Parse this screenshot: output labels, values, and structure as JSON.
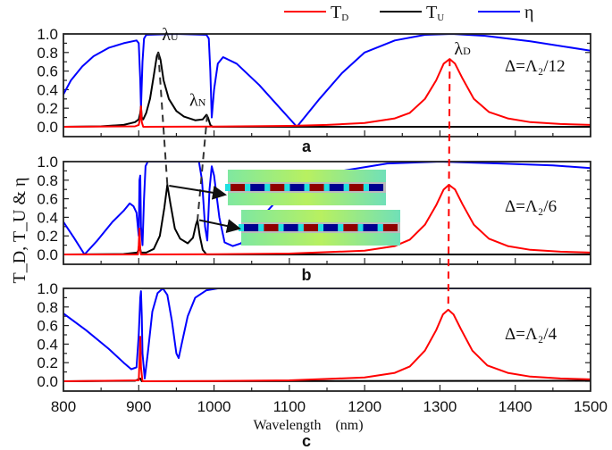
{
  "chart_data": {
    "type": "line",
    "xlim": [
      800,
      1500
    ],
    "ylim": [
      0,
      1.0
    ],
    "xticks": [
      "800",
      "900",
      "1000",
      "1100",
      "1200",
      "1300",
      "1400",
      "1500"
    ],
    "yticks": [
      "0.0",
      "0.2",
      "0.4",
      "0.6",
      "0.8",
      "1.0"
    ],
    "xlabel": "Wavelength    (nm)",
    "ylabel": "T_D, T_U & η",
    "legend": {
      "placement": "top",
      "entries": [
        {
          "key": "TD",
          "label": "T",
          "sub": "D",
          "color": "#ff0000"
        },
        {
          "key": "TU",
          "label": "T",
          "sub": "U",
          "color": "#000000"
        },
        {
          "key": "eta",
          "label": "η",
          "sub": "",
          "color": "#0000ff"
        }
      ]
    },
    "panels": [
      {
        "letter": "a",
        "condition": "Δ=Λ₂/12",
        "annotations": [
          {
            "text": "λ",
            "sub": "U",
            "x": 926,
            "y": 0.8
          },
          {
            "text": "λ",
            "sub": "N",
            "x": 991,
            "y": 0.13
          },
          {
            "text": "λ",
            "sub": "D",
            "x": 1313,
            "y": 0.73
          }
        ],
        "series": {
          "TD": [
            [
              800,
              0
            ],
            [
              895,
              0.005
            ],
            [
              900,
              0.02
            ],
            [
              902,
              0.1
            ],
            [
              903,
              0.22
            ],
            [
              904,
              0.05
            ],
            [
              906,
              0
            ],
            [
              1000,
              0.003
            ],
            [
              1100,
              0.01
            ],
            [
              1150,
              0.02
            ],
            [
              1200,
              0.04
            ],
            [
              1240,
              0.09
            ],
            [
              1260,
              0.15
            ],
            [
              1280,
              0.3
            ],
            [
              1295,
              0.5
            ],
            [
              1305,
              0.68
            ],
            [
              1313,
              0.73
            ],
            [
              1320,
              0.68
            ],
            [
              1330,
              0.52
            ],
            [
              1345,
              0.3
            ],
            [
              1365,
              0.16
            ],
            [
              1390,
              0.09
            ],
            [
              1420,
              0.05
            ],
            [
              1460,
              0.03
            ],
            [
              1500,
              0.02
            ]
          ],
          "TU": [
            [
              800,
              0
            ],
            [
              850,
              0.005
            ],
            [
              880,
              0.02
            ],
            [
              895,
              0.05
            ],
            [
              900,
              0.08
            ],
            [
              902,
              0.15
            ],
            [
              903,
              0.22
            ],
            [
              904,
              0.1
            ],
            [
              906,
              0.08
            ],
            [
              910,
              0.15
            ],
            [
              915,
              0.3
            ],
            [
              920,
              0.55
            ],
            [
              924,
              0.76
            ],
            [
              926,
              0.8
            ],
            [
              929,
              0.72
            ],
            [
              933,
              0.5
            ],
            [
              940,
              0.3
            ],
            [
              950,
              0.17
            ],
            [
              960,
              0.11
            ],
            [
              975,
              0.07
            ],
            [
              985,
              0.08
            ],
            [
              990,
              0.13
            ],
            [
              992,
              0.1
            ],
            [
              995,
              0.02
            ],
            [
              998,
              0
            ],
            [
              1500,
              0
            ]
          ],
          "eta": [
            [
              800,
              0.35
            ],
            [
              810,
              0.5
            ],
            [
              825,
              0.65
            ],
            [
              840,
              0.76
            ],
            [
              860,
              0.85
            ],
            [
              880,
              0.9
            ],
            [
              897,
              0.93
            ],
            [
              900,
              0.9
            ],
            [
              902,
              0.5
            ],
            [
              903,
              0.2
            ],
            [
              905,
              0.7
            ],
            [
              907,
              0.95
            ],
            [
              910,
              0.99
            ],
            [
              950,
              1.0
            ],
            [
              990,
              0.99
            ],
            [
              993,
              0.95
            ],
            [
              995,
              0.6
            ],
            [
              997,
              0.1
            ],
            [
              1000,
              0.4
            ],
            [
              1005,
              0.68
            ],
            [
              1012,
              0.75
            ],
            [
              1030,
              0.68
            ],
            [
              1060,
              0.45
            ],
            [
              1090,
              0.18
            ],
            [
              1110,
              0
            ],
            [
              1140,
              0.3
            ],
            [
              1170,
              0.58
            ],
            [
              1200,
              0.8
            ],
            [
              1240,
              0.93
            ],
            [
              1280,
              0.99
            ],
            [
              1316,
              1.0
            ],
            [
              1360,
              0.98
            ],
            [
              1420,
              0.92
            ],
            [
              1500,
              0.82
            ]
          ]
        }
      },
      {
        "letter": "b",
        "condition": "Δ=Λ₂/6",
        "annotations": [],
        "series": {
          "TD": [
            [
              800,
              0
            ],
            [
              899,
              0
            ],
            [
              900,
              0.1
            ],
            [
              901,
              0.28
            ],
            [
              902,
              0.05
            ],
            [
              903,
              0
            ],
            [
              1000,
              0.003
            ],
            [
              1100,
              0.01
            ],
            [
              1200,
              0.04
            ],
            [
              1240,
              0.09
            ],
            [
              1260,
              0.16
            ],
            [
              1280,
              0.32
            ],
            [
              1295,
              0.53
            ],
            [
              1305,
              0.7
            ],
            [
              1312,
              0.75
            ],
            [
              1320,
              0.7
            ],
            [
              1330,
              0.54
            ],
            [
              1345,
              0.32
            ],
            [
              1365,
              0.17
            ],
            [
              1390,
              0.09
            ],
            [
              1420,
              0.05
            ],
            [
              1460,
              0.03
            ],
            [
              1500,
              0.02
            ]
          ],
          "TU": [
            [
              800,
              0
            ],
            [
              880,
              0.005
            ],
            [
              898,
              0.02
            ],
            [
              900,
              0.05
            ],
            [
              901.5,
              0.08
            ],
            [
              903,
              0.02
            ],
            [
              910,
              0.02
            ],
            [
              920,
              0.06
            ],
            [
              928,
              0.2
            ],
            [
              934,
              0.5
            ],
            [
              938,
              0.75
            ],
            [
              942,
              0.55
            ],
            [
              948,
              0.28
            ],
            [
              955,
              0.17
            ],
            [
              965,
              0.12
            ],
            [
              972,
              0.18
            ],
            [
              976,
              0.32
            ],
            [
              978,
              0.37
            ],
            [
              981,
              0.2
            ],
            [
              985,
              0.05
            ],
            [
              990,
              0
            ],
            [
              1500,
              0
            ]
          ],
          "eta": [
            [
              800,
              0.35
            ],
            [
              814,
              0.18
            ],
            [
              828,
              0
            ],
            [
              845,
              0.15
            ],
            [
              865,
              0.35
            ],
            [
              880,
              0.47
            ],
            [
              888,
              0.55
            ],
            [
              893,
              0.52
            ],
            [
              897,
              0.45
            ],
            [
              900,
              0.2
            ],
            [
              901,
              0.8
            ],
            [
              902,
              0.85
            ],
            [
              903,
              0.3
            ],
            [
              905,
              0.1
            ],
            [
              907,
              0.6
            ],
            [
              909,
              0.95
            ],
            [
              912,
              1.0
            ],
            [
              980,
              1.0
            ],
            [
              984,
              0.8
            ],
            [
              988,
              0.3
            ],
            [
              991,
              0.15
            ],
            [
              994,
              0.7
            ],
            [
              997,
              0.95
            ],
            [
              1000,
              0.85
            ],
            [
              1007,
              0.4
            ],
            [
              1014,
              0.13
            ],
            [
              1025,
              0.09
            ],
            [
              1036,
              0.12
            ],
            [
              1050,
              0.28
            ],
            [
              1080,
              0.55
            ],
            [
              1120,
              0.75
            ],
            [
              1170,
              0.9
            ],
            [
              1230,
              0.98
            ],
            [
              1300,
              1.0
            ],
            [
              1380,
              0.98
            ],
            [
              1450,
              0.96
            ],
            [
              1500,
              0.93
            ]
          ]
        }
      },
      {
        "letter": "c",
        "condition": "Δ=Λ₂/4",
        "annotations": [],
        "series": {
          "TD": [
            [
              800,
              0
            ],
            [
              900,
              0.01
            ],
            [
              901,
              0.2
            ],
            [
              902,
              0.48
            ],
            [
              903,
              0.15
            ],
            [
              905,
              0
            ],
            [
              1000,
              0.003
            ],
            [
              1100,
              0.01
            ],
            [
              1200,
              0.04
            ],
            [
              1240,
              0.09
            ],
            [
              1260,
              0.16
            ],
            [
              1280,
              0.33
            ],
            [
              1295,
              0.55
            ],
            [
              1304,
              0.72
            ],
            [
              1311,
              0.77
            ],
            [
              1318,
              0.72
            ],
            [
              1328,
              0.56
            ],
            [
              1343,
              0.33
            ],
            [
              1363,
              0.17
            ],
            [
              1390,
              0.09
            ],
            [
              1420,
              0.05
            ],
            [
              1460,
              0.03
            ],
            [
              1500,
              0.02
            ]
          ],
          "TU": [
            [
              800,
              0
            ],
            [
              895,
              0.005
            ],
            [
              902,
              0.03
            ],
            [
              904,
              0
            ],
            [
              1500,
              0.005
            ]
          ],
          "eta": [
            [
              800,
              0.73
            ],
            [
              830,
              0.55
            ],
            [
              860,
              0.35
            ],
            [
              880,
              0.2
            ],
            [
              890,
              0.13
            ],
            [
              897,
              0.15
            ],
            [
              900,
              0.5
            ],
            [
              902,
              0.9
            ],
            [
              903,
              0.97
            ],
            [
              904,
              0.7
            ],
            [
              905,
              0.3
            ],
            [
              908,
              0.03
            ],
            [
              912,
              0.3
            ],
            [
              918,
              0.75
            ],
            [
              925,
              0.95
            ],
            [
              932,
              1.0
            ],
            [
              938,
              0.93
            ],
            [
              944,
              0.65
            ],
            [
              950,
              0.3
            ],
            [
              953,
              0.25
            ],
            [
              957,
              0.4
            ],
            [
              965,
              0.7
            ],
            [
              975,
              0.9
            ],
            [
              990,
              0.98
            ],
            [
              1005,
              1.0
            ],
            [
              1500,
              1.0
            ]
          ]
        }
      }
    ],
    "guides": [
      {
        "color": "#333333",
        "from": {
          "panel": 0,
          "x": 926,
          "y": 0.8
        },
        "to": {
          "panel": 1,
          "x": 938,
          "y": 0.75
        }
      },
      {
        "color": "#333333",
        "from": {
          "panel": 0,
          "x": 991,
          "y": 0.13
        },
        "to": {
          "panel": 1,
          "x": 978,
          "y": 0.37
        }
      },
      {
        "color": "#ff0000",
        "from": {
          "panel": 0,
          "x": 1313,
          "y": 0.73
        },
        "to": {
          "panel": 2,
          "x": 1311,
          "y": 0.77
        }
      }
    ]
  }
}
